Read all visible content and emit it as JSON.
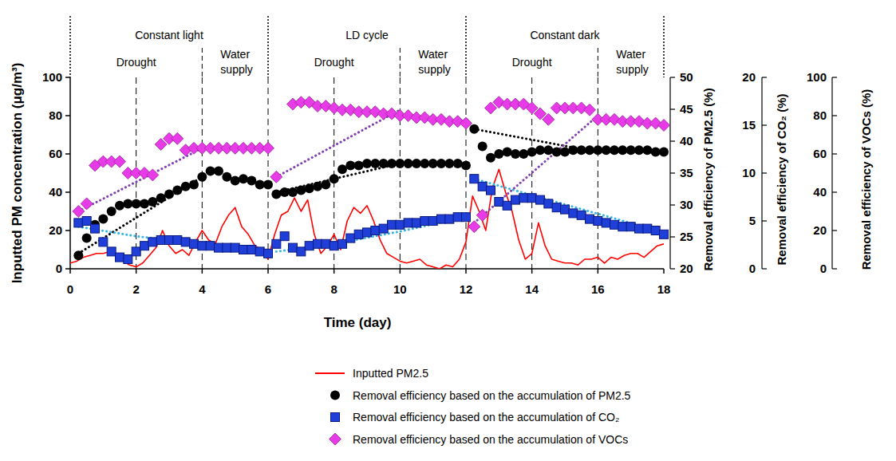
{
  "chart_data": {
    "type": "scatter",
    "x_label": "Time (day)",
    "y_label": "Inputted PM concentration (μg/m³)",
    "y2_label": "Removal efficiency of PM2.5 (%)",
    "y3_label": "Removal efficiency of CO₂ (%)",
    "y4_label": "Removal efficiency of VOCs (%)",
    "xlim": [
      0,
      18
    ],
    "xticks": [
      0,
      2,
      4,
      6,
      8,
      10,
      12,
      14,
      16,
      18
    ],
    "ylim": [
      0,
      100
    ],
    "yticks": [
      0,
      20,
      40,
      60,
      80,
      100
    ],
    "y2lim": [
      20,
      50
    ],
    "y2ticks": [
      20,
      25,
      30,
      35,
      40,
      45,
      50
    ],
    "y3lim": [
      0,
      20
    ],
    "y3ticks": [
      0,
      5,
      10,
      15,
      20
    ],
    "y4lim": [
      0,
      100
    ],
    "y4ticks": [
      0,
      20,
      40,
      60,
      80,
      100
    ],
    "grid": "x",
    "legend": "bottom",
    "phases": [
      {
        "label": "Constant light",
        "start": 0,
        "end": 6,
        "subphases": [
          {
            "label": "Drought",
            "start": 0,
            "end": 4
          },
          {
            "label": "Water supply",
            "start": 4,
            "end": 6
          }
        ]
      },
      {
        "label": "LD cycle",
        "start": 6,
        "end": 12,
        "subphases": [
          {
            "label": "Drought",
            "start": 6,
            "end": 10
          },
          {
            "label": "Water supply",
            "start": 10,
            "end": 12
          }
        ]
      },
      {
        "label": "Constant dark",
        "start": 12,
        "end": 18,
        "subphases": [
          {
            "label": "Drought",
            "start": 12,
            "end": 16
          },
          {
            "label": "Water supply",
            "start": 16,
            "end": 18
          }
        ]
      }
    ],
    "series": [
      {
        "name": "Inputted PM2.5",
        "type": "line",
        "color": "#ff0000",
        "line_style": "solid",
        "x": [
          0,
          0.2,
          0.4,
          0.6,
          0.8,
          1,
          1.2,
          1.4,
          1.6,
          1.8,
          2,
          2.2,
          2.4,
          2.6,
          2.8,
          3,
          3.2,
          3.4,
          3.6,
          3.8,
          4,
          4.2,
          4.4,
          4.6,
          4.8,
          5,
          5.2,
          5.4,
          5.6,
          5.8,
          6,
          6.2,
          6.4,
          6.6,
          6.8,
          7,
          7.2,
          7.4,
          7.6,
          7.8,
          8,
          8.2,
          8.4,
          8.6,
          8.8,
          9,
          9.2,
          9.4,
          9.6,
          9.8,
          10,
          10.2,
          10.4,
          10.6,
          10.8,
          11,
          11.2,
          11.4,
          11.6,
          11.8,
          12,
          12.2,
          12.4,
          12.6,
          12.8,
          13,
          13.2,
          13.4,
          13.6,
          13.8,
          14,
          14.2,
          14.4,
          14.6,
          14.8,
          15,
          15.2,
          15.4,
          15.6,
          15.8,
          16,
          16.2,
          16.4,
          16.6,
          16.8,
          17,
          17.2,
          17.4,
          17.6,
          17.8,
          18
        ],
        "values": [
          3,
          4,
          6,
          7,
          8,
          8,
          9,
          7,
          4,
          2,
          1,
          3,
          7,
          11,
          20,
          12,
          8,
          10,
          7,
          14,
          20,
          15,
          13,
          22,
          28,
          32,
          22,
          18,
          12,
          10,
          5,
          18,
          28,
          30,
          37,
          30,
          36,
          18,
          8,
          12,
          18,
          10,
          25,
          32,
          29,
          33,
          25,
          15,
          8,
          6,
          4,
          3,
          4,
          5,
          2,
          1,
          0,
          2,
          1,
          5,
          14,
          38,
          30,
          20,
          42,
          52,
          40,
          30,
          15,
          5,
          8,
          24,
          12,
          5,
          4,
          3,
          3,
          2,
          5,
          5,
          6,
          3,
          6,
          5,
          7,
          8,
          8,
          6,
          9,
          12,
          13
        ]
      },
      {
        "name": "Removal efficiency based on the accumulation of PM2.5",
        "type": "scatter",
        "marker": "circle",
        "color": "#000000",
        "axis": "y2",
        "x": [
          0.25,
          0.5,
          0.75,
          1,
          1.25,
          1.5,
          1.75,
          2,
          2.25,
          2.5,
          2.75,
          3,
          3.25,
          3.5,
          3.75,
          4,
          4.25,
          4.5,
          4.75,
          5,
          5.25,
          5.5,
          5.75,
          6,
          6.25,
          6.5,
          6.75,
          7,
          7.25,
          7.5,
          7.75,
          8,
          8.25,
          8.5,
          8.75,
          9,
          9.25,
          9.5,
          9.75,
          10,
          10.25,
          10.5,
          10.75,
          11,
          11.25,
          11.5,
          11.75,
          12,
          12.25,
          12.5,
          12.75,
          13,
          13.25,
          13.5,
          13.75,
          14,
          14.25,
          14.5,
          14.75,
          15,
          15.25,
          15.5,
          15.75,
          16,
          16.25,
          16.5,
          16.75,
          17,
          17.25,
          17.5,
          17.75,
          18
        ],
        "values": [
          22.1,
          24.8,
          26.9,
          27.8,
          29.0,
          29.9,
          30.2,
          30.2,
          30.2,
          30.5,
          31.1,
          31.7,
          32.3,
          32.9,
          33.2,
          34.4,
          35.3,
          35.3,
          34.4,
          33.8,
          34.1,
          33.8,
          33.2,
          33.2,
          31.7,
          32.0,
          32.0,
          32.3,
          32.6,
          32.9,
          33.2,
          34.1,
          35.6,
          36.2,
          36.2,
          36.5,
          36.5,
          36.5,
          36.5,
          36.5,
          36.5,
          36.5,
          36.5,
          36.5,
          36.5,
          36.5,
          36.5,
          36.2,
          41.9,
          39.2,
          37.4,
          38.0,
          38.3,
          38.0,
          38.0,
          38.3,
          38.6,
          38.6,
          38.3,
          38.3,
          38.6,
          38.6,
          38.6,
          38.6,
          38.6,
          38.6,
          38.6,
          38.6,
          38.6,
          38.6,
          38.3,
          38.3
        ]
      },
      {
        "name": "Removal efficiency based on the accumulation of CO₂",
        "type": "scatter",
        "marker": "square",
        "color": "#1f3fd8",
        "axis": "y3",
        "x": [
          0.25,
          0.5,
          0.75,
          1,
          1.25,
          1.5,
          1.75,
          2,
          2.25,
          2.5,
          2.75,
          3,
          3.25,
          3.5,
          3.75,
          4,
          4.25,
          4.5,
          4.75,
          5,
          5.25,
          5.5,
          5.75,
          6,
          6.25,
          6.5,
          6.75,
          7,
          7.25,
          7.5,
          7.75,
          8,
          8.25,
          8.5,
          8.75,
          9,
          9.25,
          9.5,
          9.75,
          10,
          10.25,
          10.5,
          10.75,
          11,
          11.25,
          11.5,
          11.75,
          12,
          12.25,
          12.5,
          12.75,
          13,
          13.25,
          13.5,
          13.75,
          14,
          14.25,
          14.5,
          14.75,
          15,
          15.25,
          15.5,
          15.75,
          16,
          16.25,
          16.5,
          16.75,
          17,
          17.25,
          17.5,
          17.75,
          18
        ],
        "values": [
          4.8,
          5.0,
          4.2,
          2.8,
          1.8,
          1.2,
          1.0,
          1.8,
          2.4,
          2.8,
          3.0,
          3.0,
          3.0,
          2.8,
          2.6,
          2.4,
          2.4,
          2.2,
          2.2,
          2.2,
          2.0,
          2.0,
          1.8,
          1.6,
          2.6,
          3.4,
          2.2,
          1.8,
          2.4,
          2.6,
          2.6,
          2.4,
          2.6,
          3.2,
          3.6,
          3.8,
          4.0,
          4.2,
          4.6,
          4.6,
          4.8,
          4.8,
          5.0,
          5.0,
          5.2,
          5.2,
          5.4,
          5.4,
          9.4,
          8.6,
          8.2,
          7.0,
          6.6,
          7.2,
          7.4,
          7.4,
          7.2,
          6.8,
          6.4,
          6.2,
          5.8,
          5.6,
          5.2,
          5.0,
          4.8,
          4.6,
          4.4,
          4.4,
          4.2,
          4.2,
          4.0,
          3.6
        ]
      },
      {
        "name": "Removal efficiency based on the accumulation of VOCs",
        "type": "scatter",
        "marker": "diamond",
        "color": "#e63be6",
        "axis": "y4",
        "x": [
          0.25,
          0.5,
          0.75,
          1,
          1.25,
          1.5,
          1.75,
          2,
          2.25,
          2.5,
          2.75,
          3,
          3.25,
          3.5,
          3.75,
          4,
          4.25,
          4.5,
          4.75,
          5,
          5.25,
          5.5,
          5.75,
          6,
          6.25,
          6.5,
          6.75,
          7,
          7.25,
          7.5,
          7.75,
          8,
          8.25,
          8.5,
          8.75,
          9,
          9.25,
          9.5,
          9.75,
          10,
          10.25,
          10.5,
          10.75,
          11,
          11.25,
          11.5,
          11.75,
          12,
          12.25,
          12.5,
          12.75,
          13,
          13.25,
          13.5,
          13.75,
          14,
          14.25,
          14.5,
          14.75,
          15,
          15.25,
          15.5,
          15.75,
          16,
          16.25,
          16.5,
          16.75,
          17,
          17.25,
          17.5,
          17.75,
          18
        ],
        "values": [
          30,
          34,
          54,
          56,
          56,
          56,
          50,
          50,
          50,
          49,
          65,
          68,
          68,
          62,
          63,
          63,
          63,
          63,
          63,
          63,
          63,
          63,
          63,
          63,
          48,
          null,
          86,
          87,
          87,
          85,
          85,
          84,
          83,
          83,
          82,
          82,
          82,
          81,
          81,
          80,
          80,
          79,
          79,
          78,
          78,
          77,
          77,
          76,
          22,
          28,
          84,
          87,
          86,
          86,
          86,
          84,
          81,
          78,
          84,
          84,
          84,
          84,
          83,
          78,
          78,
          78,
          77,
          77,
          77,
          76,
          76,
          75
        ]
      },
      {
        "type": "line",
        "line_style": "dotted",
        "color": "#000000",
        "axis": "y2",
        "x": [
          0.25,
          4,
          5,
          6.25,
          10,
          11,
          12.25,
          16
        ],
        "values": [
          22.4,
          34.4,
          null,
          32.0,
          36.5,
          null,
          41.9,
          38.3
        ]
      },
      {
        "type": "line",
        "line_style": "dotted",
        "color": "#33b5e5",
        "axis": "y3",
        "x": [
          0.25,
          2,
          4,
          6,
          6.1,
          6.25,
          8,
          10,
          12,
          12.1,
          12.25,
          18
        ],
        "values": [
          4.4,
          3.4,
          2.6,
          1.8,
          null,
          1.8,
          2.6,
          3.9,
          5.4,
          null,
          9.4,
          3.8
        ]
      },
      {
        "type": "line",
        "line_style": "dotted",
        "color": "#8040b0",
        "axis": "y4",
        "x": [
          0.25,
          4,
          5,
          6.25,
          10,
          11,
          12.25,
          16
        ],
        "values": [
          30,
          63,
          null,
          48,
          83,
          null,
          24,
          80
        ]
      }
    ]
  }
}
